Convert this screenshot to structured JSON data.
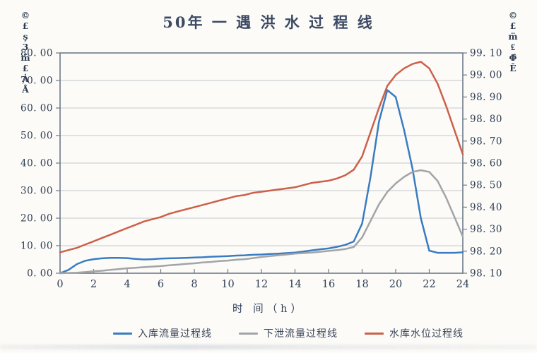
{
  "title": "50年 一 遇 洪 水 过 程 线",
  "y_left_unit_label": "©\n£\nş\n3\nm̈\n£\nȦ\nÅ",
  "y_right_unit_label": "©\n£\nm̈\n₤\nΦ̂\nĒ",
  "xlabel": "时 间（h）",
  "axes": {
    "y_left_tick_labels": [
      "80. 00",
      "70. 00",
      "60. 00",
      "50. 00",
      "40. 00",
      "30. 00",
      "20. 00",
      "10. 00",
      "0. 00"
    ],
    "y_right_tick_labels": [
      "99. 10",
      "99. 00",
      "98. 90",
      "98. 80",
      "98. 70",
      "98. 60",
      "98. 50",
      "98. 40",
      "98. 30",
      "98. 20",
      "98. 10"
    ],
    "x_tick_labels": [
      "0",
      "2",
      "4",
      "6",
      "8",
      "10",
      "12",
      "14",
      "16",
      "18",
      "20",
      "22",
      "24"
    ]
  },
  "legend": [
    {
      "label": "入库流量过程线",
      "color": "#3a7cc2"
    },
    {
      "label": "下泄流量过程线",
      "color": "#a2a4a7"
    },
    {
      "label": "水库水位过程线",
      "color": "#cc604a"
    }
  ],
  "colors": {
    "title_text": "#3c4a63",
    "tick_text": "#2e3d53",
    "gridline": "#c5c8cc",
    "axis_frame": "#6e7a8a"
  },
  "chart_data": {
    "type": "line",
    "title": "50年一遇洪水过程线",
    "xlabel": "时间（h）",
    "grid": "horizontal",
    "legend_position": "bottom",
    "x_range": [
      0,
      24
    ],
    "x_tick_step": 2,
    "y_left_range": [
      0,
      80
    ],
    "y_left_tick_step": 10,
    "y_right_range": [
      98.1,
      99.1
    ],
    "y_right_tick_step": 0.1,
    "x": [
      0,
      0.5,
      1,
      1.5,
      2,
      2.5,
      3,
      3.5,
      4,
      4.5,
      5,
      5.5,
      6,
      6.5,
      7,
      7.5,
      8,
      8.5,
      9,
      9.5,
      10,
      10.5,
      11,
      11.5,
      12,
      12.5,
      13,
      13.5,
      14,
      14.5,
      15,
      15.5,
      16,
      16.5,
      17,
      17.5,
      18,
      18.5,
      19,
      19.5,
      20,
      20.5,
      21,
      21.5,
      22,
      22.5,
      23,
      23.5,
      24
    ],
    "series": [
      {
        "name": "入库流量过程线",
        "axis": "left",
        "color": "#3a7cc2",
        "values": [
          0,
          1.2,
          3.3,
          4.5,
          5.1,
          5.4,
          5.6,
          5.6,
          5.5,
          5.2,
          5.0,
          5.1,
          5.3,
          5.4,
          5.5,
          5.6,
          5.7,
          5.8,
          6.0,
          6.1,
          6.2,
          6.4,
          6.5,
          6.7,
          6.8,
          7.0,
          7.1,
          7.3,
          7.5,
          7.9,
          8.3,
          8.7,
          9.0,
          9.6,
          10.3,
          11.5,
          18,
          35,
          55,
          66.5,
          64,
          52,
          38,
          20,
          8.2,
          7.4,
          7.4,
          7.4,
          7.6
        ]
      },
      {
        "name": "下泄流量过程线",
        "axis": "left",
        "color": "#a2a4a7",
        "values": [
          0,
          0.1,
          0.2,
          0.4,
          0.7,
          0.9,
          1.2,
          1.5,
          1.8,
          2.0,
          2.2,
          2.4,
          2.6,
          2.9,
          3.1,
          3.4,
          3.6,
          3.9,
          4.1,
          4.4,
          4.6,
          4.9,
          5.1,
          5.5,
          5.9,
          6.2,
          6.5,
          6.8,
          7.1,
          7.3,
          7.5,
          7.8,
          8.1,
          8.4,
          8.8,
          9.5,
          13,
          19,
          25,
          29.5,
          32.6,
          35,
          36.8,
          37.4,
          36.8,
          33.5,
          27.5,
          20.5,
          13.3
        ]
      },
      {
        "name": "水库水位过程线",
        "axis": "right",
        "color": "#cc604a",
        "values": [
          98.195,
          98.205,
          98.215,
          98.23,
          98.245,
          98.26,
          98.275,
          98.29,
          98.305,
          98.32,
          98.335,
          98.345,
          98.355,
          98.37,
          98.38,
          98.39,
          98.4,
          98.41,
          98.42,
          98.43,
          98.44,
          98.45,
          98.455,
          98.465,
          98.47,
          98.475,
          98.48,
          98.485,
          98.49,
          98.5,
          98.51,
          98.515,
          98.52,
          98.53,
          98.545,
          98.57,
          98.63,
          98.74,
          98.85,
          98.95,
          99.0,
          99.03,
          99.05,
          99.06,
          99.03,
          98.96,
          98.86,
          98.75,
          98.64
        ]
      }
    ]
  }
}
